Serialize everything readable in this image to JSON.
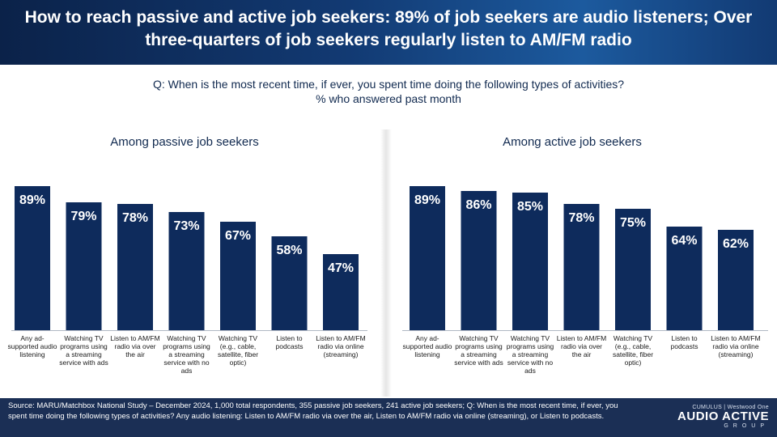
{
  "header": {
    "title": "How to reach passive and active job seekers: 89% of job seekers are audio listeners; Over three-quarters of job seekers regularly listen to AM/FM radio"
  },
  "question": {
    "line1": "Q: When is the most recent time, if ever, you spent time doing the following types of activities?",
    "line2": "% who answered past month"
  },
  "colors": {
    "bar": "#0e2b5c",
    "header": "#123a73",
    "footer": "#1b2f55"
  },
  "chart_data": [
    {
      "type": "bar",
      "title": "Among passive job seekers",
      "categories": [
        "Any ad-supported audio listening",
        "Watching TV programs using a streaming service with ads",
        "Listen to AM/FM radio via over the air",
        "Watching TV programs using a streaming service with no ads",
        "Watching TV (e.g., cable, satellite, fiber optic)",
        "Listen to podcasts",
        "Listen to AM/FM radio via online (streaming)"
      ],
      "values": [
        89,
        79,
        78,
        73,
        67,
        58,
        47
      ],
      "value_labels": [
        "89%",
        "79%",
        "78%",
        "73%",
        "67%",
        "58%",
        "47%"
      ],
      "ylim": [
        0,
        100
      ],
      "grid": false
    },
    {
      "type": "bar",
      "title": "Among active job seekers",
      "categories": [
        "Any ad-supported audio listening",
        "Watching TV programs using a streaming service with ads",
        "Watching TV programs using a streaming service with no ads",
        "Listen to AM/FM radio via over the air",
        "Watching TV (e.g., cable, satellite, fiber optic)",
        "Listen to podcasts",
        "Listen to AM/FM radio via online (streaming)"
      ],
      "values": [
        89,
        86,
        85,
        78,
        75,
        64,
        62
      ],
      "value_labels": [
        "89%",
        "86%",
        "85%",
        "78%",
        "75%",
        "64%",
        "62%"
      ],
      "ylim": [
        0,
        100
      ],
      "grid": false
    }
  ],
  "footer": {
    "source": "Source: MARU/Matchbox National Study – December 2024, 1,000 total respondents, 355 passive job seekers, 241 active job seekers; Q: When is the most recent time, if ever, you spent time doing the following types of activities? Any audio listening: Listen to AM/FM radio via over the air, Listen to AM/FM radio via online (streaming), or Listen to podcasts.",
    "logo_small": "CUMULUS | Westwood One",
    "logo_big": "AUDIO ACTIVE",
    "logo_group": "GROUP"
  }
}
